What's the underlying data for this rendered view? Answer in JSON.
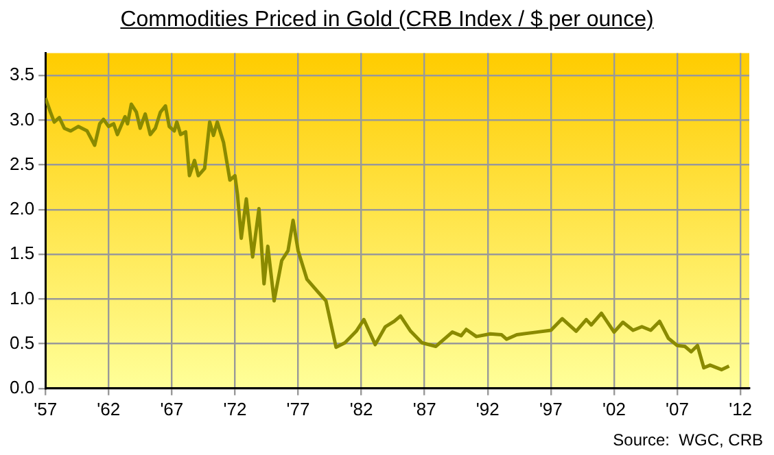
{
  "chart_data": {
    "type": "line",
    "title": "Commodities Priced in Gold (CRB Index  / $ per ounce)",
    "annotations": [
      "Source:  WGC, CRB"
    ],
    "x": [
      1957.0,
      1957.4,
      1957.7,
      1958.1,
      1958.5,
      1959.0,
      1959.6,
      1960.3,
      1960.9,
      1961.3,
      1961.6,
      1962.0,
      1962.4,
      1962.7,
      1963.3,
      1963.5,
      1963.8,
      1964.2,
      1964.5,
      1964.9,
      1965.3,
      1965.7,
      1966.1,
      1966.5,
      1966.8,
      1967.2,
      1967.4,
      1967.7,
      1968.1,
      1968.4,
      1968.8,
      1969.1,
      1969.6,
      1970.0,
      1970.3,
      1970.6,
      1971.1,
      1971.6,
      1972.0,
      1972.2,
      1972.5,
      1972.9,
      1973.4,
      1973.9,
      1974.3,
      1974.6,
      1975.1,
      1975.7,
      1976.2,
      1976.6,
      1977.0,
      1977.7,
      1978.5,
      1979.2,
      1980.0,
      1980.7,
      1981.6,
      1982.2,
      1983.1,
      1983.9,
      1984.6,
      1985.1,
      1985.9,
      1986.8,
      1987.9,
      1989.2,
      1989.9,
      1990.3,
      1991.1,
      1992.2,
      1993.1,
      1993.5,
      1994.3,
      1995.9,
      1997.0,
      1997.9,
      1999.0,
      1999.8,
      2000.2,
      2001.0,
      2002.0,
      2002.7,
      2003.5,
      2004.2,
      2004.9,
      2005.6,
      2006.3,
      2007.0,
      2007.6,
      2008.1,
      2008.6,
      2009.1,
      2009.6,
      2010.5,
      2011.1
    ],
    "series": [
      {
        "color": "#8a8a00",
        "values": [
          3.25,
          3.09,
          2.98,
          3.03,
          2.91,
          2.88,
          2.93,
          2.88,
          2.72,
          2.96,
          3.01,
          2.93,
          2.96,
          2.84,
          3.04,
          2.96,
          3.18,
          3.09,
          2.91,
          3.07,
          2.84,
          2.91,
          3.09,
          3.16,
          2.93,
          2.88,
          2.98,
          2.84,
          2.87,
          2.38,
          2.55,
          2.38,
          2.46,
          2.98,
          2.83,
          2.98,
          2.75,
          2.33,
          2.38,
          2.17,
          1.68,
          2.12,
          1.47,
          2.01,
          1.17,
          1.59,
          0.98,
          1.43,
          1.54,
          1.88,
          1.54,
          1.22,
          1.09,
          0.98,
          0.46,
          0.51,
          0.64,
          0.77,
          0.49,
          0.69,
          0.75,
          0.81,
          0.64,
          0.51,
          0.47,
          0.63,
          0.59,
          0.66,
          0.58,
          0.61,
          0.6,
          0.55,
          0.6,
          0.63,
          0.65,
          0.78,
          0.64,
          0.77,
          0.71,
          0.84,
          0.63,
          0.74,
          0.65,
          0.69,
          0.65,
          0.75,
          0.56,
          0.48,
          0.47,
          0.41,
          0.48,
          0.23,
          0.26,
          0.21,
          0.25
        ]
      }
    ],
    "xlim": [
      1957,
      2012.7
    ],
    "xticks": [
      {
        "value": 1957,
        "label": "'57"
      },
      {
        "value": 1962,
        "label": "'62"
      },
      {
        "value": 1967,
        "label": "'67"
      },
      {
        "value": 1972,
        "label": "'72"
      },
      {
        "value": 1977,
        "label": "'77"
      },
      {
        "value": 1982,
        "label": "'82"
      },
      {
        "value": 1987,
        "label": "'87"
      },
      {
        "value": 1992,
        "label": "'92"
      },
      {
        "value": 1997,
        "label": "'97"
      },
      {
        "value": 2002,
        "label": "'02"
      },
      {
        "value": 2007,
        "label": "'07"
      },
      {
        "value": 2012,
        "label": "'12"
      }
    ],
    "ylim": [
      0,
      3.75
    ],
    "yticks": [
      {
        "value": 0,
        "label": "0.0"
      },
      {
        "value": 0.5,
        "label": "0.5"
      },
      {
        "value": 1,
        "label": "1.0"
      },
      {
        "value": 1.5,
        "label": "1.5"
      },
      {
        "value": 2,
        "label": "2.0"
      },
      {
        "value": 2.5,
        "label": "2.5"
      },
      {
        "value": 3,
        "label": "3.0"
      },
      {
        "value": 3.5,
        "label": "3.5"
      }
    ],
    "grid": true,
    "legend": false,
    "marker": "none",
    "line_style": "solid"
  }
}
